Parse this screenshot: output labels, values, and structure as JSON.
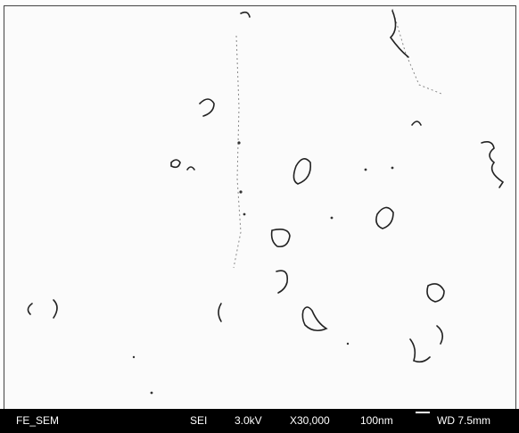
{
  "info_bar": {
    "detector_name": "FE_SEM",
    "signal": "SEI",
    "voltage": "3.0kV",
    "magnification": "X30,000",
    "scale_bar": "100nm",
    "working_distance": "WD 7.5mm"
  }
}
